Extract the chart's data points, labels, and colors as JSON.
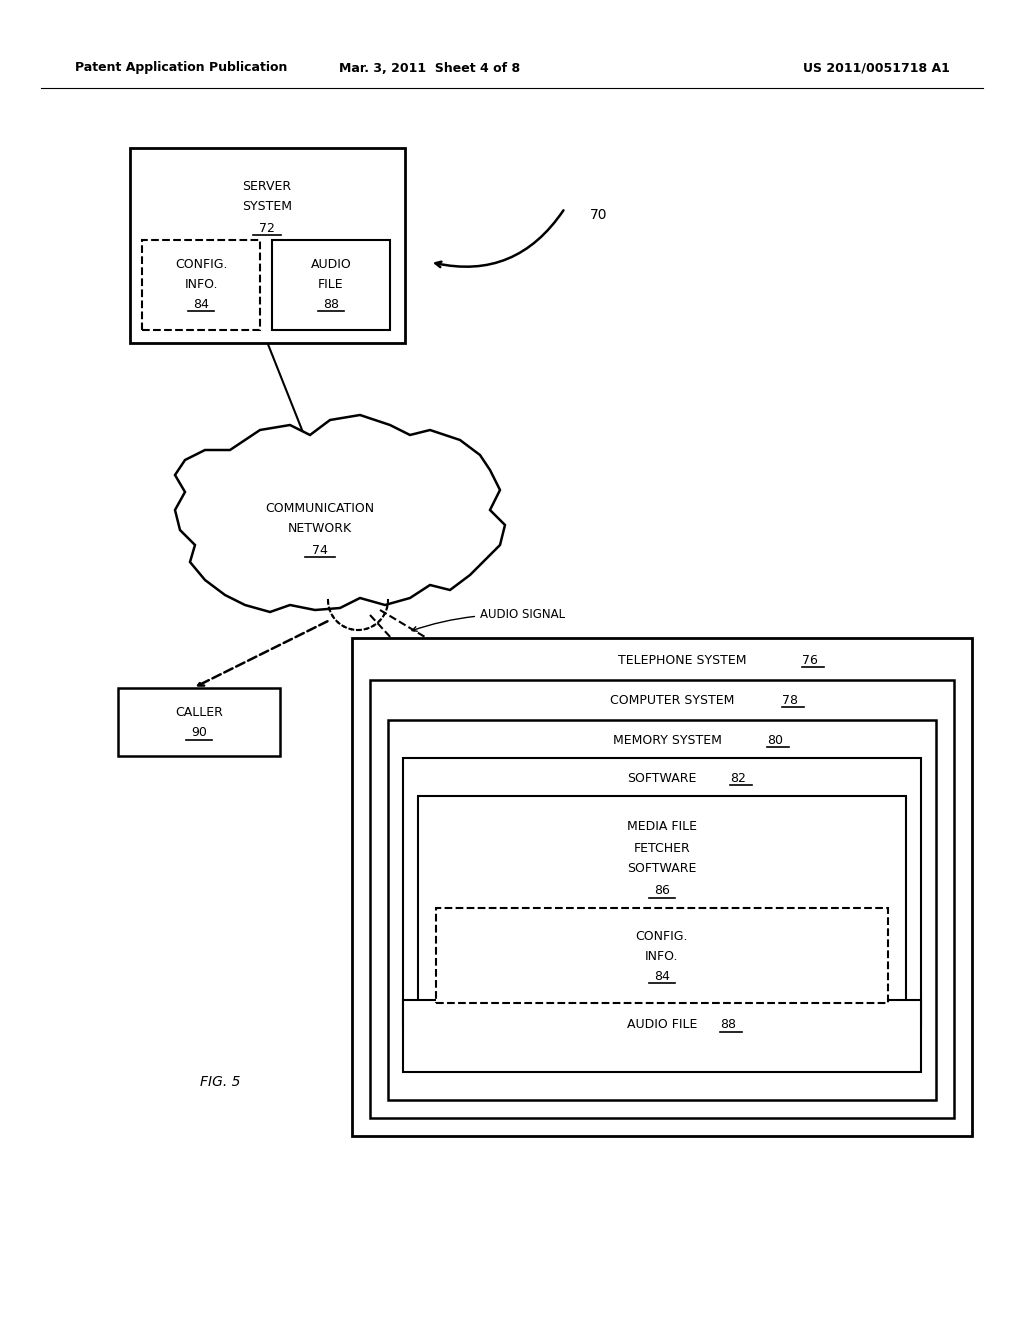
{
  "bg_color": "#ffffff",
  "header_left": "Patent Application Publication",
  "header_mid": "Mar. 3, 2011  Sheet 4 of 8",
  "header_right": "US 2011/0051718 A1",
  "fig_label": "FIG. 5"
}
